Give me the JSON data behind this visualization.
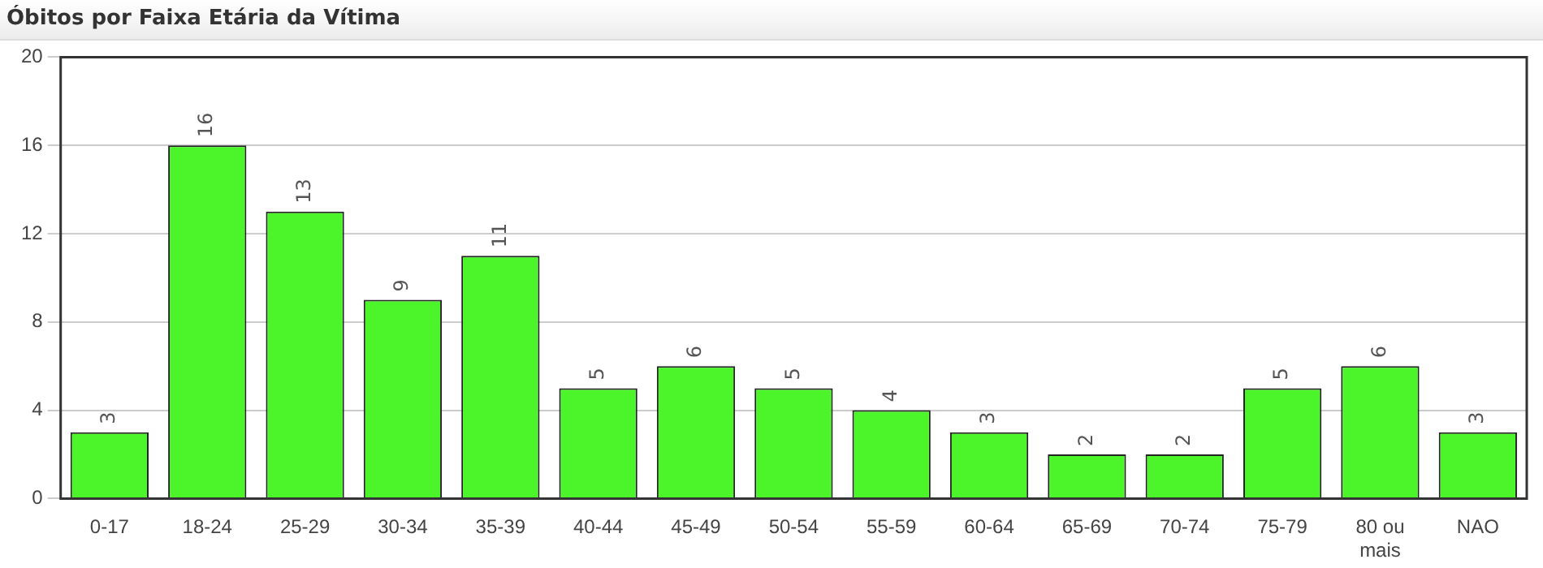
{
  "chart_data": {
    "type": "bar",
    "title": "Óbitos por Faixa Etária da Vítima",
    "categories": [
      "0-17",
      "18-24",
      "25-29",
      "30-34",
      "35-39",
      "40-44",
      "45-49",
      "50-54",
      "55-59",
      "60-64",
      "65-69",
      "70-74",
      "75-79",
      "80 ou mais",
      "NAO"
    ],
    "values": [
      3,
      16,
      13,
      9,
      11,
      5,
      6,
      5,
      4,
      3,
      2,
      2,
      5,
      6,
      3
    ],
    "color": "#4cf52a",
    "ylim": [
      0,
      20
    ],
    "yticks": [
      0,
      4,
      8,
      12,
      16,
      20
    ],
    "grid": "y",
    "data_labels": true
  }
}
